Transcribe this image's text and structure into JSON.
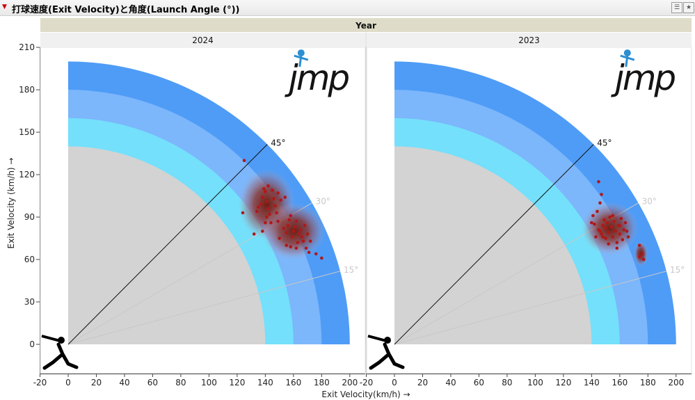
{
  "header": {
    "title": "打球速度(Exit Velocity)と角度(Launch Angle (°))"
  },
  "chart_data": {
    "type": "scatter",
    "group_label": "Year",
    "xlabel": "Exit Velocity(km/h) →",
    "ylabel": "Exit Velocity (km/h) →",
    "xlim": [
      -20,
      200
    ],
    "ylim": [
      -15,
      210
    ],
    "x_ticks": [
      -20,
      0,
      20,
      40,
      60,
      80,
      100,
      120,
      140,
      160,
      180,
      200
    ],
    "y_ticks": [
      0,
      30,
      60,
      90,
      120,
      150,
      180,
      210
    ],
    "zones": [
      {
        "radius": 140,
        "color": "#d3d3d3"
      },
      {
        "radius": 160,
        "color": "#74e0fb"
      },
      {
        "radius": 180,
        "color": "#7cb6fb"
      },
      {
        "radius": 200,
        "color": "#4f9cf7"
      }
    ],
    "angle_lines": [
      {
        "angle": 15,
        "label": "15°",
        "color": "#c8c8c8"
      },
      {
        "angle": 30,
        "label": "30°",
        "color": "#c8c8c8"
      },
      {
        "angle": 45,
        "label": "45°",
        "color": "#111111"
      }
    ],
    "logo_text": "jmp",
    "point_color": "#b01818",
    "panels": [
      {
        "label": "2024",
        "density": [
          {
            "x": 141,
            "y": 99,
            "rx": 16,
            "ry": 20
          },
          {
            "x": 160,
            "y": 80,
            "rx": 18,
            "ry": 16
          }
        ],
        "points": [
          [
            125,
            130
          ],
          [
            124,
            93
          ],
          [
            134,
            94
          ],
          [
            135,
            97
          ],
          [
            137,
            99
          ],
          [
            138,
            104
          ],
          [
            139,
            110
          ],
          [
            140,
            108
          ],
          [
            141,
            101
          ],
          [
            142,
            96
          ],
          [
            143,
            92
          ],
          [
            144,
            86
          ],
          [
            145,
            109
          ],
          [
            146,
            103
          ],
          [
            147,
            98
          ],
          [
            148,
            93
          ],
          [
            149,
            107
          ],
          [
            151,
            102
          ],
          [
            154,
            104
          ],
          [
            140,
            86
          ],
          [
            138,
            80
          ],
          [
            132,
            78
          ],
          [
            149,
            87
          ],
          [
            153,
            82
          ],
          [
            155,
            79
          ],
          [
            156,
            84
          ],
          [
            157,
            88
          ],
          [
            158,
            91
          ],
          [
            159,
            76
          ],
          [
            160,
            80
          ],
          [
            161,
            83
          ],
          [
            162,
            87
          ],
          [
            163,
            72
          ],
          [
            164,
            78
          ],
          [
            165,
            81
          ],
          [
            166,
            76
          ],
          [
            167,
            73
          ],
          [
            168,
            84
          ],
          [
            169,
            68
          ],
          [
            170,
            78
          ],
          [
            171,
            65
          ],
          [
            172,
            73
          ],
          [
            176,
            64
          ],
          [
            180,
            61
          ],
          [
            155,
            70
          ],
          [
            158,
            69
          ],
          [
            162,
            68
          ],
          [
            150,
            75
          ],
          [
            142,
            112
          ],
          [
            141,
            90
          ]
        ]
      },
      {
        "label": "2023",
        "density": [
          {
            "x": 153,
            "y": 82,
            "rx": 16,
            "ry": 15
          },
          {
            "x": 175,
            "y": 64,
            "rx": 4,
            "ry": 7
          }
        ],
        "points": [
          [
            145,
            115
          ],
          [
            147,
            106
          ],
          [
            146,
            100
          ],
          [
            141,
            91
          ],
          [
            140,
            86
          ],
          [
            142,
            85
          ],
          [
            144,
            94
          ],
          [
            145,
            81
          ],
          [
            146,
            80
          ],
          [
            147,
            78
          ],
          [
            148,
            84
          ],
          [
            149,
            88
          ],
          [
            150,
            75
          ],
          [
            151,
            86
          ],
          [
            152,
            79
          ],
          [
            153,
            90
          ],
          [
            154,
            83
          ],
          [
            155,
            76
          ],
          [
            156,
            87
          ],
          [
            157,
            80
          ],
          [
            158,
            72
          ],
          [
            159,
            84
          ],
          [
            160,
            78
          ],
          [
            161,
            89
          ],
          [
            162,
            74
          ],
          [
            163,
            81
          ],
          [
            164,
            86
          ],
          [
            165,
            80
          ],
          [
            166,
            76
          ],
          [
            158,
            68
          ],
          [
            150,
            82
          ],
          [
            155,
            91
          ],
          [
            148,
            76
          ],
          [
            174,
            70
          ],
          [
            174,
            62
          ],
          [
            176,
            64
          ],
          [
            177,
            60
          ],
          [
            143,
            76
          ],
          [
            152,
            71
          ],
          [
            160,
            84
          ]
        ]
      }
    ]
  }
}
